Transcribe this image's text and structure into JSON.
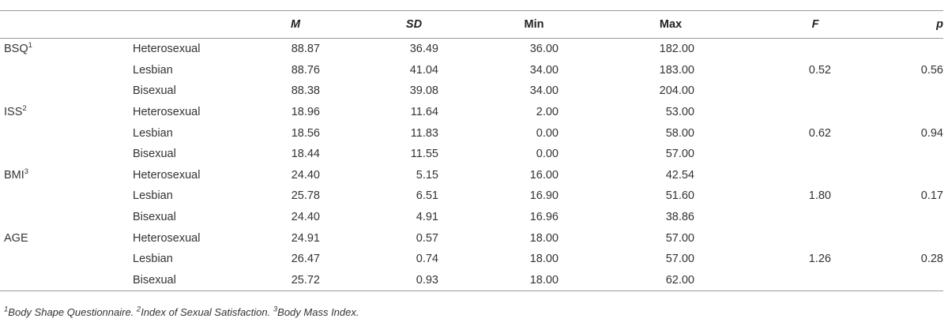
{
  "header": {
    "col_m": "M",
    "col_sd": "SD",
    "col_min": "Min",
    "col_max": "Max",
    "col_f": "F",
    "col_p": "p"
  },
  "rows": [
    {
      "variable": "BSQ",
      "sup": "1",
      "group": "Heterosexual",
      "m": "88.87",
      "sd": "36.49",
      "min": "36.00",
      "max": "182.00",
      "f": "",
      "p": ""
    },
    {
      "variable": "",
      "sup": "",
      "group": "Lesbian",
      "m": "88.76",
      "sd": "41.04",
      "min": "34.00",
      "max": "183.00",
      "f": "0.52",
      "p": "0.56"
    },
    {
      "variable": "",
      "sup": "",
      "group": "Bisexual",
      "m": "88.38",
      "sd": "39.08",
      "min": "34.00",
      "max": "204.00",
      "f": "",
      "p": ""
    },
    {
      "variable": "ISS",
      "sup": "2",
      "group": "Heterosexual",
      "m": "18.96",
      "sd": "11.64",
      "min": "2.00",
      "max": "53.00",
      "f": "",
      "p": ""
    },
    {
      "variable": "",
      "sup": "",
      "group": "Lesbian",
      "m": "18.56",
      "sd": "11.83",
      "min": "0.00",
      "max": "58.00",
      "f": "0.62",
      "p": "0.94"
    },
    {
      "variable": "",
      "sup": "",
      "group": "Bisexual",
      "m": "18.44",
      "sd": "11.55",
      "min": "0.00",
      "max": "57.00",
      "f": "",
      "p": ""
    },
    {
      "variable": "BMI",
      "sup": "3",
      "group": "Heterosexual",
      "m": "24.40",
      "sd": "5.15",
      "min": "16.00",
      "max": "42.54",
      "f": "",
      "p": ""
    },
    {
      "variable": "",
      "sup": "",
      "group": "Lesbian",
      "m": "25.78",
      "sd": "6.51",
      "min": "16.90",
      "max": "51.60",
      "f": "1.80",
      "p": "0.17"
    },
    {
      "variable": "",
      "sup": "",
      "group": "Bisexual",
      "m": "24.40",
      "sd": "4.91",
      "min": "16.96",
      "max": "38.86",
      "f": "",
      "p": ""
    },
    {
      "variable": "AGE",
      "sup": "",
      "group": "Heterosexual",
      "m": "24.91",
      "sd": "0.57",
      "min": "18.00",
      "max": "57.00",
      "f": "",
      "p": ""
    },
    {
      "variable": "",
      "sup": "",
      "group": "Lesbian",
      "m": "26.47",
      "sd": "0.74",
      "min": "18.00",
      "max": "57.00",
      "f": "1.26",
      "p": "0.28"
    },
    {
      "variable": "",
      "sup": "",
      "group": "Bisexual",
      "m": "25.72",
      "sd": "0.93",
      "min": "18.00",
      "max": "62.00",
      "f": "",
      "p": ""
    }
  ],
  "footnote": {
    "s1": "1",
    "t1": "Body Shape Questionnaire. ",
    "s2": "2",
    "t2": "Index of Sexual Satisfaction. ",
    "s3": "3",
    "t3": "Body Mass Index."
  }
}
